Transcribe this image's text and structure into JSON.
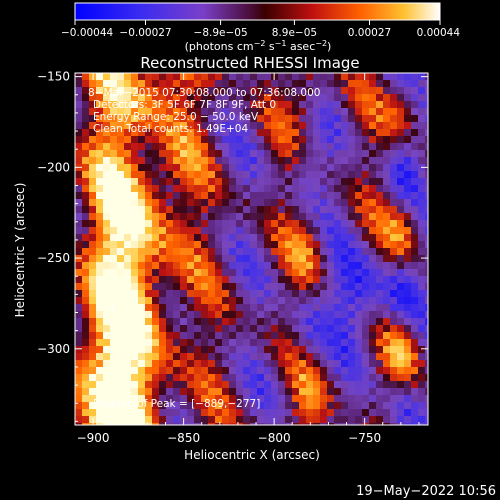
{
  "chart_data": {
    "type": "heatmap",
    "title": "Reconstructed RHESSI Image",
    "xlabel": "Heliocentric X (arcsec)",
    "ylabel": "Heliocentric Y (arcsec)",
    "xlim": [
      -910,
      -715
    ],
    "ylim": [
      -342,
      -148
    ],
    "x_ticks": [
      {
        "value": -900,
        "label": "−900"
      },
      {
        "value": -850,
        "label": "−850"
      },
      {
        "value": -800,
        "label": "−800"
      },
      {
        "value": -750,
        "label": "−750"
      }
    ],
    "y_ticks": [
      {
        "value": -150,
        "label": "−150"
      },
      {
        "value": -200,
        "label": "−200"
      },
      {
        "value": -250,
        "label": "−250"
      },
      {
        "value": -300,
        "label": "−300"
      }
    ],
    "colorbar": {
      "range": [
        -0.00044,
        0.00044
      ],
      "tick_values": [
        -0.00044,
        -0.00027,
        -8.9e-05,
        8.9e-05,
        0.00027,
        0.00044
      ],
      "tick_labels": [
        "−0.00044",
        "−0.00027",
        "−8.9e−05",
        "8.9e−05",
        "0.00027",
        "0.00044"
      ],
      "units_main": "(photons cm",
      "units_exp1": "−2",
      "units_mid": " s",
      "units_exp2": "−1",
      "units_mid2": " asec",
      "units_exp3": "−2",
      "units_end": ")"
    },
    "annotations": [
      " 8−Mar−2015 07:30:08.000 to 07:36:08.000",
      "Detectors: 3F 5F 6F 7F 8F 9F, Att 0",
      "Energy Range: 25.0 − 50.0 keV",
      "Clean     Total counts: 1.49E+04"
    ],
    "peak_label": "Position of Peak = [−889,−277]",
    "peak": {
      "x": -889,
      "y": -277
    },
    "footer_date": "19−May−2022 10:56"
  }
}
